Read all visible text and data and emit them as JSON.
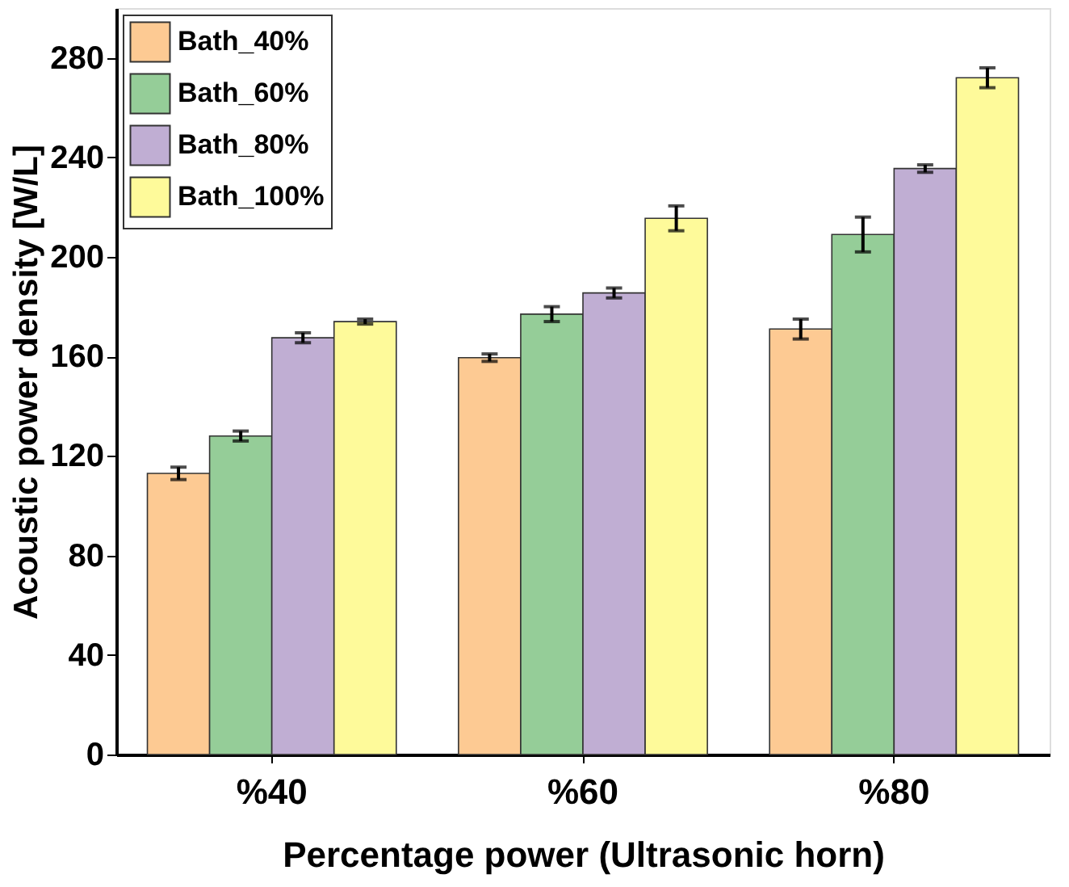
{
  "chart_data": {
    "type": "bar",
    "xlabel": "Percentage power (Ultrasonic horn)",
    "ylabel": "Acoustic power density [W/L]",
    "categories": [
      "%40",
      "%60",
      "%80"
    ],
    "series": [
      {
        "name": "Bath_40%",
        "color": "#fdca93",
        "values": [
          113,
          159.5,
          171
        ],
        "errors": [
          2.5,
          1.5,
          4
        ]
      },
      {
        "name": "Bath_60%",
        "color": "#95cd98",
        "values": [
          128,
          177,
          209
        ],
        "errors": [
          2,
          3,
          7
        ]
      },
      {
        "name": "Bath_80%",
        "color": "#c0aed3",
        "values": [
          167.5,
          185.5,
          235.5
        ],
        "errors": [
          2,
          2,
          1.5
        ]
      },
      {
        "name": "Bath_100%",
        "color": "#fefa9a",
        "values": [
          174,
          215.5,
          272
        ],
        "errors": [
          1,
          5,
          4
        ]
      }
    ],
    "ylim": [
      0,
      300
    ],
    "yticks": [
      0,
      40,
      80,
      120,
      160,
      200,
      240,
      280
    ],
    "grid": false,
    "legend": "top left"
  }
}
